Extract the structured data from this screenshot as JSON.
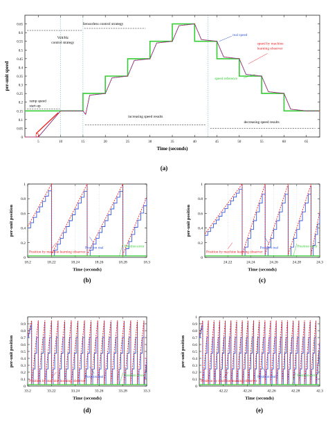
{
  "chart_data": [
    {
      "type": "line",
      "panel": "(a)",
      "xlabel": "Time (seconds)",
      "ylabel": "per-unit speed",
      "xlim": [
        2,
        68
      ],
      "ylim": [
        0,
        0.7
      ],
      "xticks": [
        5,
        10,
        15,
        20,
        25,
        30,
        35,
        40,
        45,
        50,
        55,
        60,
        65
      ],
      "yticks": [
        0,
        0.05,
        0.1,
        0.15,
        0.2,
        0.25,
        0.3,
        0.35,
        0.4,
        0.45,
        0.5,
        0.55,
        0.6,
        0.65
      ],
      "series": [
        {
          "name": "speed reference",
          "color": "#33cc33",
          "x": [
            2,
            10,
            10,
            15,
            15,
            20,
            20,
            25,
            25,
            30,
            30,
            35,
            35,
            40,
            40,
            45,
            45,
            50,
            50,
            55,
            55,
            60,
            60,
            65,
            65,
            68
          ],
          "y": [
            0.15,
            0.15,
            0.15,
            0.15,
            0.25,
            0.25,
            0.35,
            0.35,
            0.45,
            0.45,
            0.55,
            0.55,
            0.65,
            0.65,
            0.55,
            0.55,
            0.45,
            0.45,
            0.35,
            0.35,
            0.25,
            0.25,
            0.15,
            0.15,
            0.15,
            0.15
          ]
        },
        {
          "name": "real speed",
          "color": "#3355dd",
          "x": [
            2,
            5,
            10,
            15,
            15.6,
            16.5,
            20,
            21.5,
            25,
            26.5,
            30,
            31.5,
            35,
            36.5,
            40,
            41.5,
            45,
            46.5,
            50,
            51.5,
            55,
            56.5,
            60,
            61.5,
            65,
            66.5,
            68
          ],
          "y": [
            0,
            0,
            0.15,
            0.15,
            0.13,
            0.24,
            0.25,
            0.34,
            0.35,
            0.44,
            0.45,
            0.54,
            0.55,
            0.64,
            0.65,
            0.56,
            0.55,
            0.46,
            0.45,
            0.36,
            0.35,
            0.26,
            0.25,
            0.16,
            0.15,
            0.15,
            0.15
          ]
        },
        {
          "name": "speed by machine learning observer",
          "color": "#ee2222",
          "x": [
            2,
            5,
            10,
            15,
            15.6,
            16.5,
            20,
            21.5,
            25,
            26.5,
            30,
            31.5,
            35,
            36.5,
            40,
            41.5,
            45,
            46.5,
            50,
            51.5,
            55,
            56.5,
            60,
            61.5,
            65,
            66.5,
            68
          ],
          "y": [
            0,
            0,
            0.15,
            0.15,
            0.13,
            0.24,
            0.25,
            0.34,
            0.35,
            0.44,
            0.45,
            0.54,
            0.55,
            0.64,
            0.65,
            0.56,
            0.55,
            0.46,
            0.45,
            0.36,
            0.35,
            0.26,
            0.25,
            0.16,
            0.15,
            0.15,
            0.15
          ]
        }
      ],
      "annotations": [
        "Sensorless control strategy",
        "Volt/Hz control strategy",
        "ramp speed start-up",
        "increasing speed results",
        "decreasing speed results"
      ]
    },
    {
      "type": "line",
      "panel": "(b)",
      "xlabel": "Time (seconds)",
      "ylabel": "per-unit position",
      "xlim": [
        18.2,
        18.3
      ],
      "ylim": [
        0,
        1
      ],
      "xticks": [
        18.2,
        18.22,
        18.24,
        18.26,
        18.28,
        18.3
      ],
      "yticks": [
        0,
        0.2,
        0.4,
        0.6,
        0.8,
        1
      ],
      "sawtooth": {
        "x_start": 18.2,
        "x_end": 18.3,
        "resets": [
          18.22,
          18.25,
          18.28
        ],
        "start_value": 0.4,
        "end_value": 0.8
      },
      "series_names": [
        "Position real",
        "Position by machine learning observer",
        "Position error"
      ],
      "error_value": 0.02
    },
    {
      "type": "line",
      "panel": "(c)",
      "xlabel": "Time (seconds)",
      "ylabel": "per-unit position",
      "xlim": [
        24.2,
        24.3
      ],
      "ylim": [
        0,
        1
      ],
      "xticks": [
        24.22,
        24.24,
        24.26,
        24.28,
        24.3
      ],
      "yticks": [
        0,
        0.2,
        0.4,
        0.6,
        0.8,
        1
      ],
      "sawtooth": {
        "x_start": 24.2,
        "x_end": 24.3,
        "resets": [
          24.2325,
          24.2525,
          24.2725,
          24.2925
        ],
        "start_value": 0.3,
        "end_value": 0.6
      },
      "series_names": [
        "Position real",
        "Position by machine learning observer",
        "Position error"
      ],
      "error_value": 0.02
    },
    {
      "type": "line",
      "panel": "(d)",
      "xlabel": "Time (seconds)",
      "ylabel": "per-unit position",
      "xlim": [
        33.2,
        33.3
      ],
      "ylim": [
        0,
        1
      ],
      "xticks": [
        33.2,
        33.22,
        33.24,
        33.26,
        33.28,
        33.3
      ],
      "yticks": [
        0,
        0.1,
        0.2,
        0.3,
        0.4,
        0.5,
        0.6,
        0.7,
        0.8,
        0.9
      ],
      "sawtooth": {
        "x_start": 33.2,
        "x_end": 33.3,
        "period": 0.00555,
        "start_value": 0.7,
        "peak": 0.93
      },
      "series_names": [
        "Position real",
        "Position by machine learning observer",
        "Position error"
      ],
      "error_value": 0.02
    },
    {
      "type": "line",
      "panel": "(e)",
      "xlabel": "Time (seconds)",
      "ylabel": "per-unit position",
      "xlim": [
        42.2,
        42.3
      ],
      "ylim": [
        0,
        1
      ],
      "xticks": [
        42.22,
        42.24,
        42.26,
        42.28,
        42.3
      ],
      "yticks": [
        0,
        0.1,
        0.2,
        0.3,
        0.4,
        0.5,
        0.6,
        0.7,
        0.8,
        0.9,
        1
      ],
      "sawtooth": {
        "x_start": 42.2,
        "x_end": 42.3,
        "period": 0.0047,
        "start_value": 0.7,
        "peak": 0.93
      },
      "series_names": [
        "Position real",
        "Position by machine learning observer",
        "Position error"
      ],
      "error_value": 0.02
    }
  ]
}
